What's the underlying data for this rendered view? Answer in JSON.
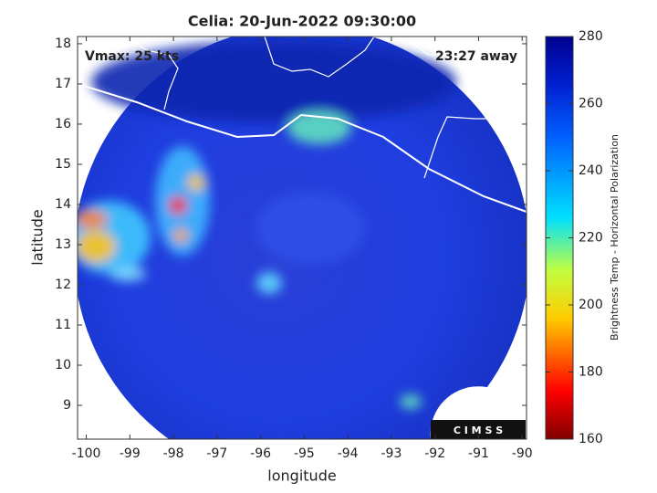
{
  "title": "Celia: 20-Jun-2022 09:30:00",
  "annotations": {
    "intensity": "Vmax: 25 kts",
    "time_away": "23:27 away",
    "logo": "C I M S S"
  },
  "x_axis": {
    "label": "longitude",
    "lim": [
      -100.2,
      -89.9
    ],
    "ticks": [
      -100,
      -99,
      -98,
      -97,
      -96,
      -95,
      -94,
      -93,
      -92,
      -91,
      -90
    ]
  },
  "y_axis": {
    "label": "latitude",
    "lim": [
      8.16,
      18.18
    ],
    "ticks": [
      9,
      10,
      11,
      12,
      13,
      14,
      15,
      16,
      17,
      18
    ]
  },
  "colorbar": {
    "label": "Brightness Temp - Horizontal Polarization",
    "lim": [
      160,
      280
    ],
    "ticks": [
      160,
      180,
      200,
      220,
      240,
      260,
      280
    ]
  }
}
